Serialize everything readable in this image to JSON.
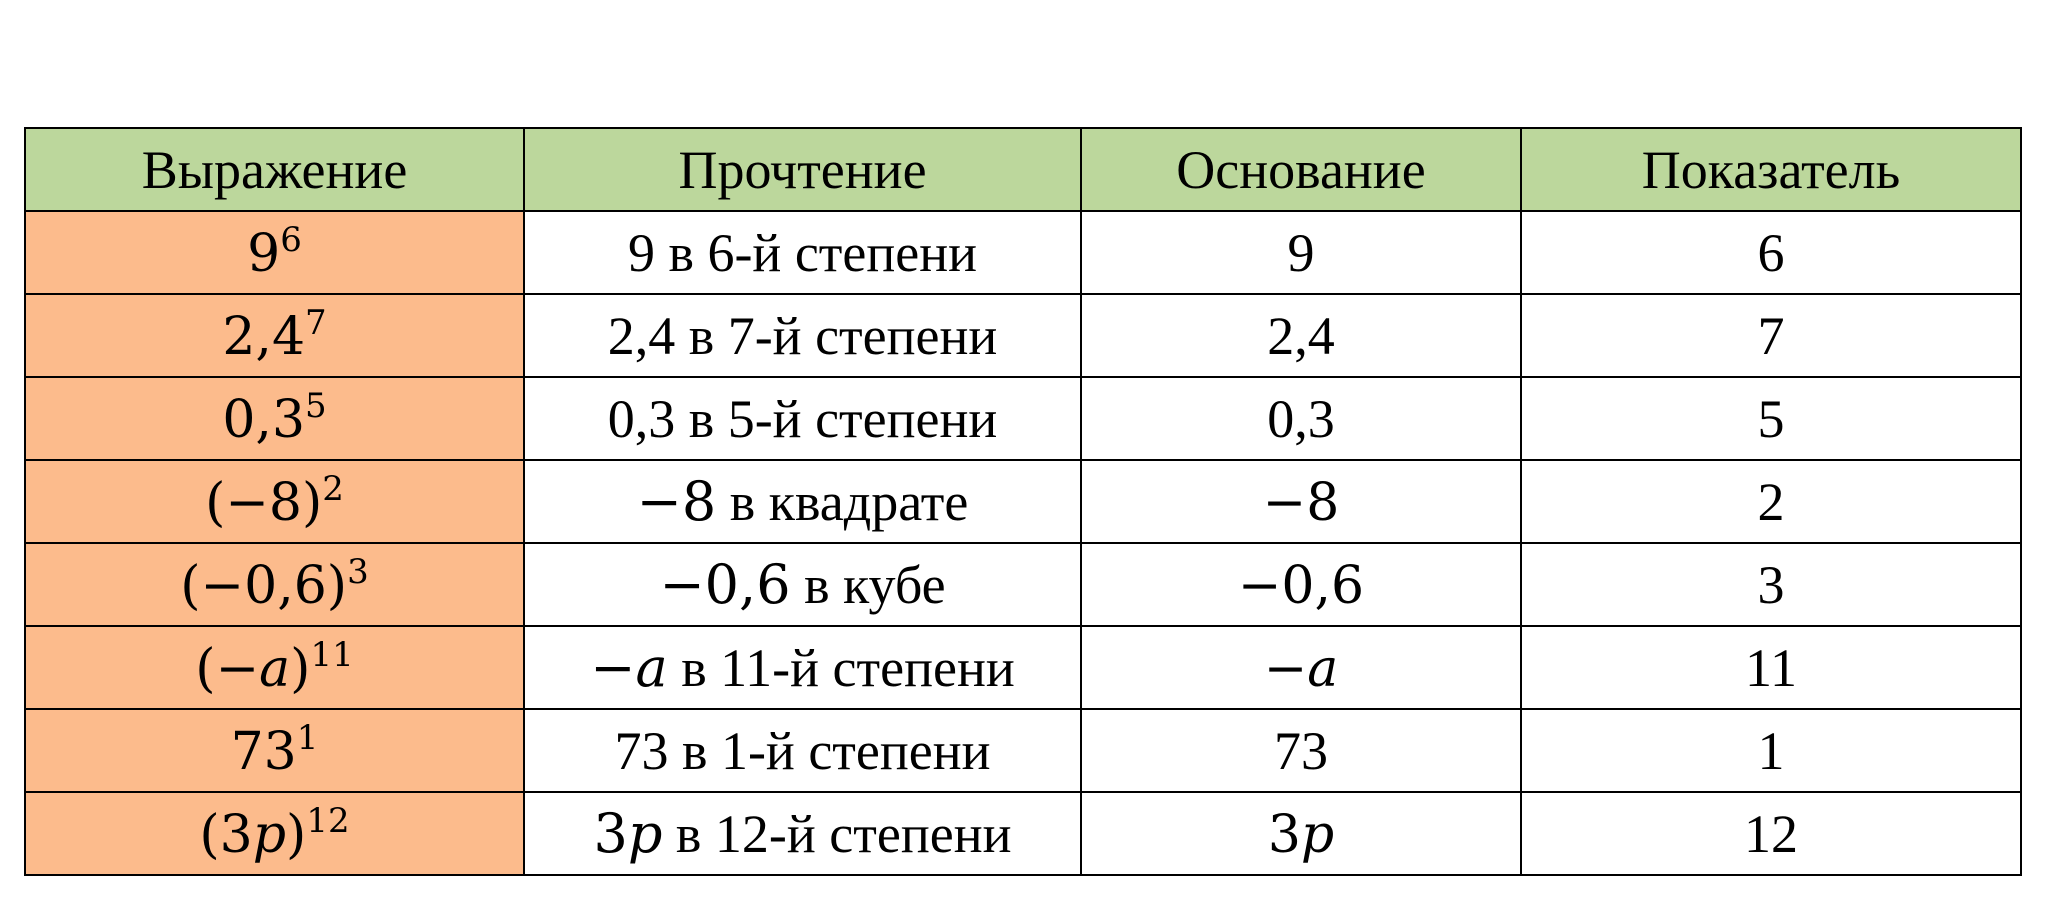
{
  "table": {
    "headers": [
      "Выражение",
      "Прочтение",
      "Основание",
      "Показатель"
    ],
    "rows": [
      {
        "base": "9",
        "exp": "6",
        "reading_math": "",
        "reading_text": "9 в 6-й степени",
        "basis": "9",
        "exponent": "6"
      },
      {
        "base": "2,4",
        "exp": "7",
        "reading_math": "",
        "reading_text": "2,4 в 7-й степени",
        "basis": "2,4",
        "exponent": "7"
      },
      {
        "base": "0,3",
        "exp": "5",
        "reading_math": "",
        "reading_text": "0,3 в 5-й степени",
        "basis": "0,3",
        "exponent": "5"
      },
      {
        "base": "(−8)",
        "exp": "2",
        "reading_math": "−8",
        "reading_text": " в квадрате",
        "basis": "−8",
        "exponent": "2"
      },
      {
        "base": "(−0,6)",
        "exp": "3",
        "reading_math": "−0,6",
        "reading_text": " в кубе",
        "basis": "−0,6",
        "exponent": "3"
      },
      {
        "base": "(−𝑎)",
        "exp": "11",
        "reading_math": "−𝑎",
        "reading_text": " в 11-й степени",
        "basis": "−𝑎",
        "exponent": "11"
      },
      {
        "base": "73",
        "exp": "1",
        "reading_math": "",
        "reading_text": "73 в 1-й степени",
        "basis": "73",
        "exponent": "1"
      },
      {
        "base": "(3𝑝)",
        "exp": "12",
        "reading_math": "3𝑝",
        "reading_text": " в 12-й степени",
        "basis": "3𝑝",
        "exponent": "12"
      }
    ]
  }
}
